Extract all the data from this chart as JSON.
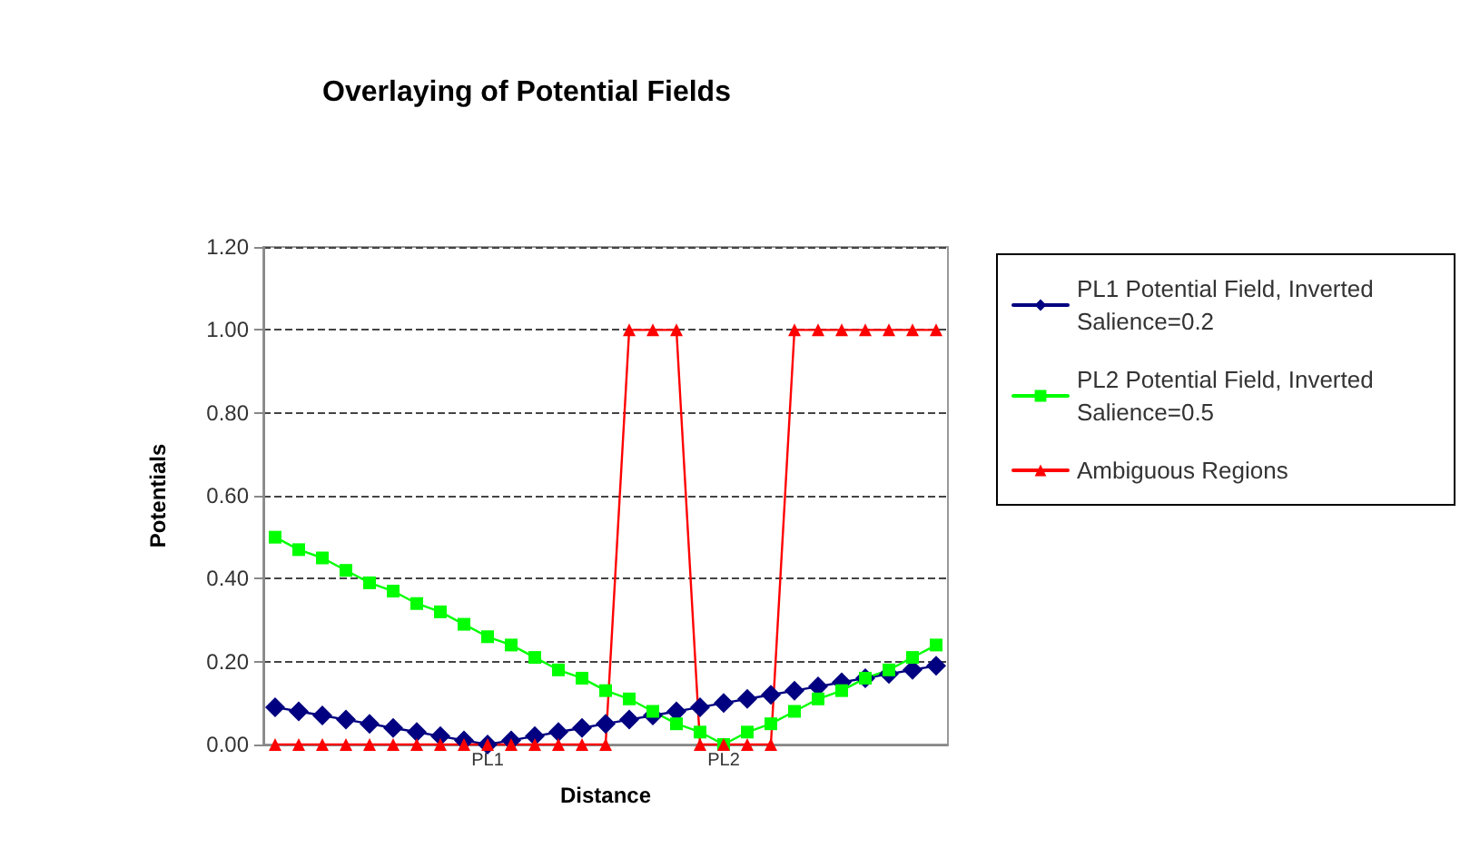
{
  "chart_data": {
    "type": "line",
    "title": "Overlaying of Potential Fields",
    "xlabel": "Distance",
    "ylabel": "Potentials",
    "categories": [
      null,
      null,
      null,
      null,
      null,
      null,
      null,
      null,
      null,
      "PL1",
      null,
      null,
      null,
      null,
      null,
      null,
      null,
      null,
      null,
      "PL2",
      null,
      null,
      null,
      null,
      null,
      null,
      null,
      null,
      null
    ],
    "series": [
      {
        "name": "PL1 Potential Field, Inverted Salience=0.2",
        "color": "#000080",
        "marker": "diamond",
        "values": [
          0.09,
          0.08,
          0.07,
          0.06,
          0.05,
          0.04,
          0.03,
          0.02,
          0.01,
          0.0,
          0.01,
          0.02,
          0.03,
          0.04,
          0.05,
          0.06,
          0.07,
          0.08,
          0.09,
          0.1,
          0.11,
          0.12,
          0.13,
          0.14,
          0.15,
          0.16,
          0.17,
          0.18,
          0.19
        ]
      },
      {
        "name": "PL2 Potential Field, Inverted Salience=0.5",
        "color": "#00ff00",
        "marker": "square",
        "values": [
          0.5,
          0.47,
          0.45,
          0.42,
          0.39,
          0.37,
          0.34,
          0.32,
          0.29,
          0.26,
          0.24,
          0.21,
          0.18,
          0.16,
          0.13,
          0.11,
          0.08,
          0.05,
          0.03,
          0.0,
          0.03,
          0.05,
          0.08,
          0.11,
          0.13,
          0.16,
          0.18,
          0.21,
          0.24
        ]
      },
      {
        "name": "Ambiguous Regions",
        "color": "#ff0000",
        "marker": "triangle",
        "values": [
          0,
          0,
          0,
          0,
          0,
          0,
          0,
          0,
          0,
          0,
          0,
          0,
          0,
          0,
          0,
          1,
          1,
          1,
          0,
          0,
          0,
          0,
          1,
          1,
          1,
          1,
          1,
          1,
          1
        ]
      }
    ],
    "ylim": [
      0,
      1.2
    ],
    "yticks": [
      {
        "value": 0,
        "label": "0.00"
      },
      {
        "value": 0.2,
        "label": "0.20"
      },
      {
        "value": 0.4,
        "label": "0.40"
      },
      {
        "value": 0.6,
        "label": "0.60"
      },
      {
        "value": 0.8,
        "label": "0.80"
      },
      {
        "value": 1.0,
        "label": "1.00"
      },
      {
        "value": 1.2,
        "label": "1.20"
      }
    ],
    "grid": "y",
    "legend": "right",
    "line_style": "solid"
  }
}
